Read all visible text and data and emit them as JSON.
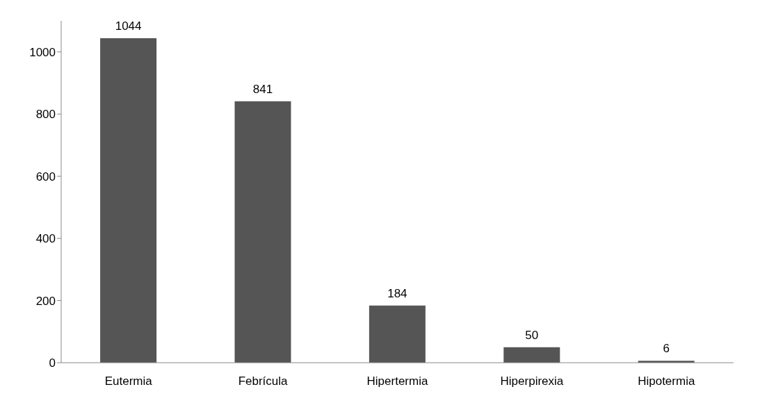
{
  "chart_data": {
    "type": "bar",
    "categories": [
      "Eutermia",
      "Febrícula",
      "Hipertermia",
      "Hiperpirexia",
      "Hipotermia"
    ],
    "values": [
      1044,
      841,
      184,
      50,
      6
    ],
    "color": "#555555",
    "ylim": [
      0,
      1100
    ],
    "yticks": [
      0,
      200,
      400,
      600,
      800,
      1000
    ],
    "grid": false,
    "legend": false,
    "data_labels": true
  }
}
